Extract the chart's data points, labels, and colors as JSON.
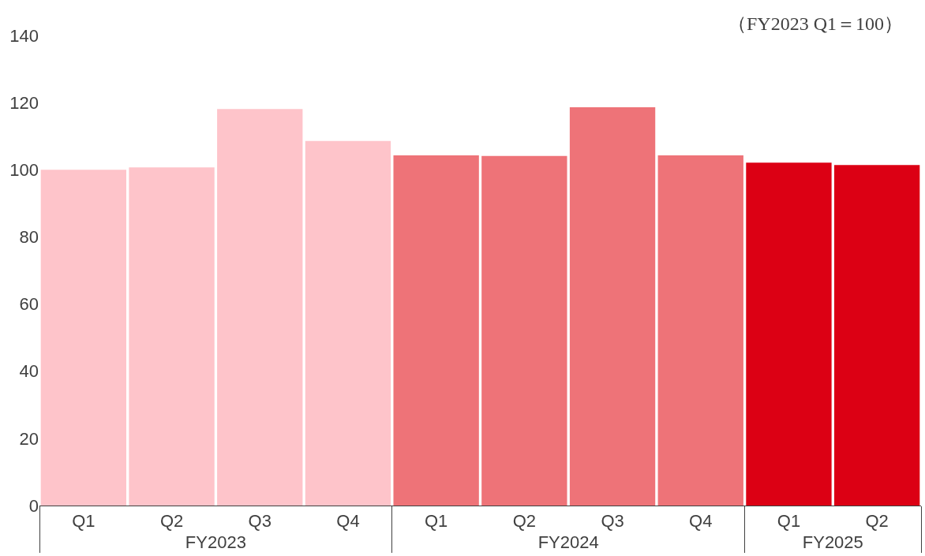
{
  "chart_data": {
    "type": "bar",
    "subtitle": "（FY2023 Q1＝100）",
    "categories": [
      "Q1",
      "Q2",
      "Q3",
      "Q4",
      "Q1",
      "Q2",
      "Q3",
      "Q4",
      "Q1",
      "Q2"
    ],
    "series": [
      {
        "name": "FY2023",
        "color": "#fec4ca",
        "values": [
          100,
          100.7,
          118.1,
          108.6,
          null,
          null,
          null,
          null,
          null,
          null
        ]
      },
      {
        "name": "FY2024",
        "color": "#ee7378",
        "values": [
          null,
          null,
          null,
          null,
          104.3,
          104.1,
          118.6,
          104.3,
          null,
          null
        ]
      },
      {
        "name": "FY2025",
        "color": "#dc0014",
        "values": [
          null,
          null,
          null,
          null,
          null,
          null,
          null,
          null,
          102.1,
          101.4
        ]
      }
    ],
    "ylim": [
      0,
      140
    ],
    "yticks": [
      0,
      20,
      40,
      60,
      80,
      100,
      120,
      140
    ],
    "legend": false
  }
}
